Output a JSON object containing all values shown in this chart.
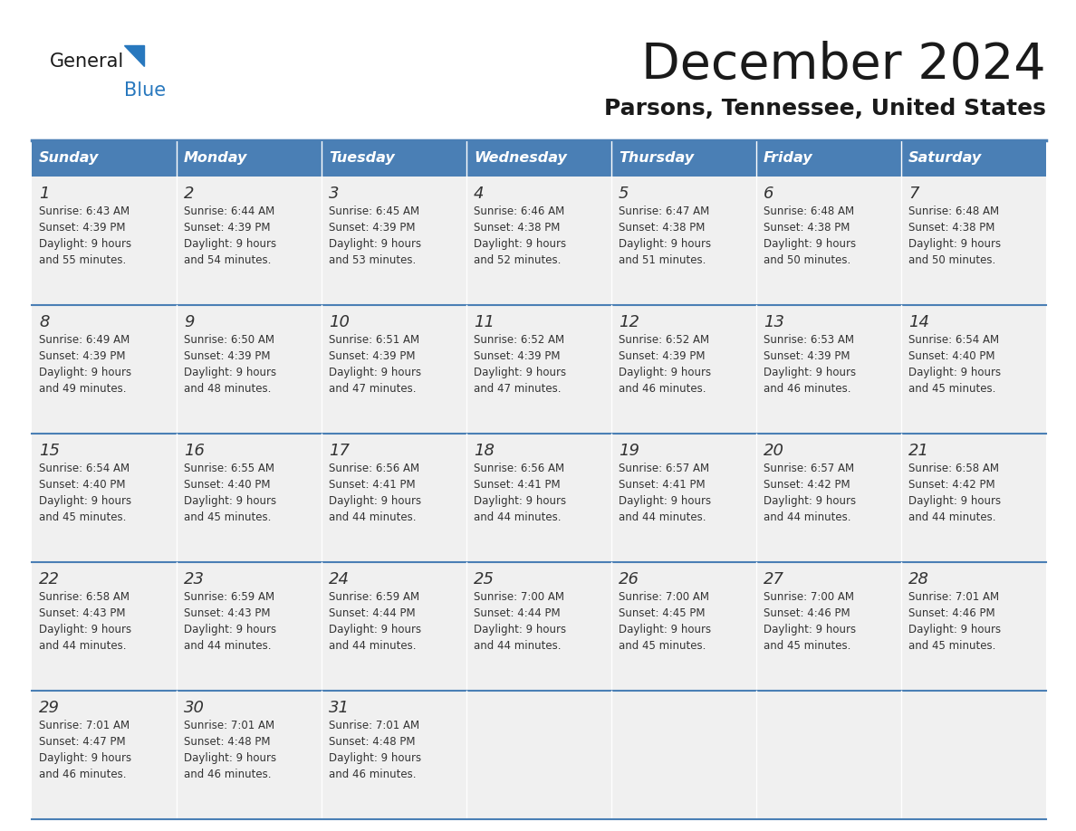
{
  "title": "December 2024",
  "subtitle": "Parsons, Tennessee, United States",
  "days_of_week": [
    "Sunday",
    "Monday",
    "Tuesday",
    "Wednesday",
    "Thursday",
    "Friday",
    "Saturday"
  ],
  "header_bg": "#4a7fb5",
  "header_text": "#ffffff",
  "cell_bg": "#f0f0f0",
  "grid_line_color": "#4a7fb5",
  "text_color": "#333333",
  "title_color": "#1a1a1a",
  "subtitle_color": "#1a1a1a",
  "logo_dark": "#1a1a1a",
  "logo_blue": "#2878be",
  "logo_triangle": "#2878be",
  "weeks": [
    [
      {
        "day": 1,
        "sunrise": "6:43 AM",
        "sunset": "4:39 PM",
        "daylight": "9 hours\nand 55 minutes."
      },
      {
        "day": 2,
        "sunrise": "6:44 AM",
        "sunset": "4:39 PM",
        "daylight": "9 hours\nand 54 minutes."
      },
      {
        "day": 3,
        "sunrise": "6:45 AM",
        "sunset": "4:39 PM",
        "daylight": "9 hours\nand 53 minutes."
      },
      {
        "day": 4,
        "sunrise": "6:46 AM",
        "sunset": "4:38 PM",
        "daylight": "9 hours\nand 52 minutes."
      },
      {
        "day": 5,
        "sunrise": "6:47 AM",
        "sunset": "4:38 PM",
        "daylight": "9 hours\nand 51 minutes."
      },
      {
        "day": 6,
        "sunrise": "6:48 AM",
        "sunset": "4:38 PM",
        "daylight": "9 hours\nand 50 minutes."
      },
      {
        "day": 7,
        "sunrise": "6:48 AM",
        "sunset": "4:38 PM",
        "daylight": "9 hours\nand 50 minutes."
      }
    ],
    [
      {
        "day": 8,
        "sunrise": "6:49 AM",
        "sunset": "4:39 PM",
        "daylight": "9 hours\nand 49 minutes."
      },
      {
        "day": 9,
        "sunrise": "6:50 AM",
        "sunset": "4:39 PM",
        "daylight": "9 hours\nand 48 minutes."
      },
      {
        "day": 10,
        "sunrise": "6:51 AM",
        "sunset": "4:39 PM",
        "daylight": "9 hours\nand 47 minutes."
      },
      {
        "day": 11,
        "sunrise": "6:52 AM",
        "sunset": "4:39 PM",
        "daylight": "9 hours\nand 47 minutes."
      },
      {
        "day": 12,
        "sunrise": "6:52 AM",
        "sunset": "4:39 PM",
        "daylight": "9 hours\nand 46 minutes."
      },
      {
        "day": 13,
        "sunrise": "6:53 AM",
        "sunset": "4:39 PM",
        "daylight": "9 hours\nand 46 minutes."
      },
      {
        "day": 14,
        "sunrise": "6:54 AM",
        "sunset": "4:40 PM",
        "daylight": "9 hours\nand 45 minutes."
      }
    ],
    [
      {
        "day": 15,
        "sunrise": "6:54 AM",
        "sunset": "4:40 PM",
        "daylight": "9 hours\nand 45 minutes."
      },
      {
        "day": 16,
        "sunrise": "6:55 AM",
        "sunset": "4:40 PM",
        "daylight": "9 hours\nand 45 minutes."
      },
      {
        "day": 17,
        "sunrise": "6:56 AM",
        "sunset": "4:41 PM",
        "daylight": "9 hours\nand 44 minutes."
      },
      {
        "day": 18,
        "sunrise": "6:56 AM",
        "sunset": "4:41 PM",
        "daylight": "9 hours\nand 44 minutes."
      },
      {
        "day": 19,
        "sunrise": "6:57 AM",
        "sunset": "4:41 PM",
        "daylight": "9 hours\nand 44 minutes."
      },
      {
        "day": 20,
        "sunrise": "6:57 AM",
        "sunset": "4:42 PM",
        "daylight": "9 hours\nand 44 minutes."
      },
      {
        "day": 21,
        "sunrise": "6:58 AM",
        "sunset": "4:42 PM",
        "daylight": "9 hours\nand 44 minutes."
      }
    ],
    [
      {
        "day": 22,
        "sunrise": "6:58 AM",
        "sunset": "4:43 PM",
        "daylight": "9 hours\nand 44 minutes."
      },
      {
        "day": 23,
        "sunrise": "6:59 AM",
        "sunset": "4:43 PM",
        "daylight": "9 hours\nand 44 minutes."
      },
      {
        "day": 24,
        "sunrise": "6:59 AM",
        "sunset": "4:44 PM",
        "daylight": "9 hours\nand 44 minutes."
      },
      {
        "day": 25,
        "sunrise": "7:00 AM",
        "sunset": "4:44 PM",
        "daylight": "9 hours\nand 44 minutes."
      },
      {
        "day": 26,
        "sunrise": "7:00 AM",
        "sunset": "4:45 PM",
        "daylight": "9 hours\nand 45 minutes."
      },
      {
        "day": 27,
        "sunrise": "7:00 AM",
        "sunset": "4:46 PM",
        "daylight": "9 hours\nand 45 minutes."
      },
      {
        "day": 28,
        "sunrise": "7:01 AM",
        "sunset": "4:46 PM",
        "daylight": "9 hours\nand 45 minutes."
      }
    ],
    [
      {
        "day": 29,
        "sunrise": "7:01 AM",
        "sunset": "4:47 PM",
        "daylight": "9 hours\nand 46 minutes."
      },
      {
        "day": 30,
        "sunrise": "7:01 AM",
        "sunset": "4:48 PM",
        "daylight": "9 hours\nand 46 minutes."
      },
      {
        "day": 31,
        "sunrise": "7:01 AM",
        "sunset": "4:48 PM",
        "daylight": "9 hours\nand 46 minutes."
      },
      null,
      null,
      null,
      null
    ]
  ]
}
